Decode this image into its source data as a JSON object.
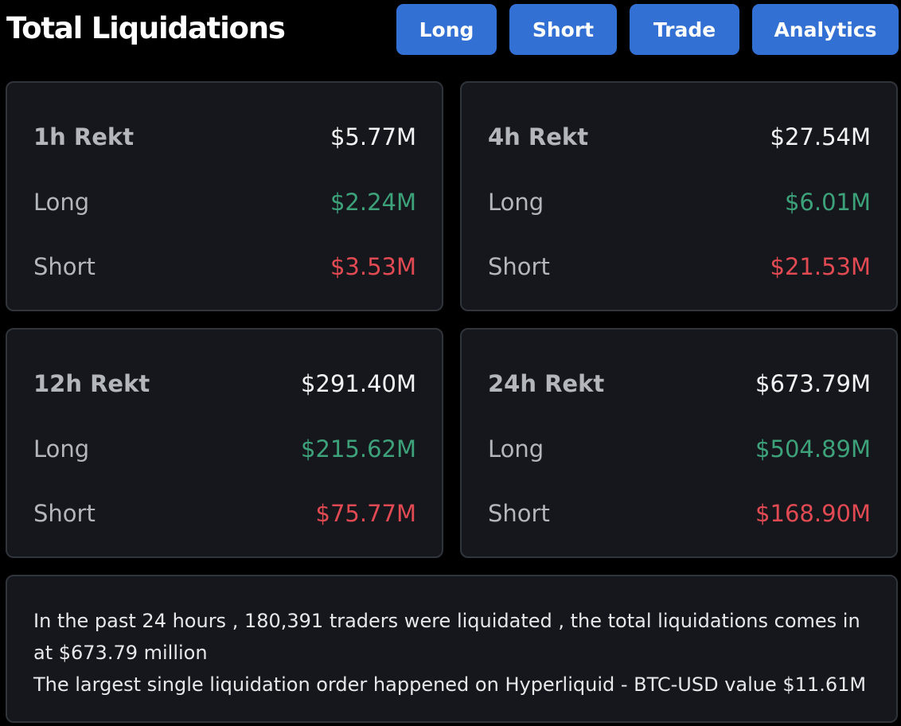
{
  "header": {
    "title": "Total Liquidations",
    "buttons": {
      "long": "Long",
      "short": "Short",
      "trade": "Trade",
      "analytics": "Analytics"
    }
  },
  "cards": [
    {
      "label": "1h Rekt",
      "total": "$5.77M",
      "long_label": "Long",
      "long": "$2.24M",
      "short_label": "Short",
      "short": "$3.53M"
    },
    {
      "label": "4h Rekt",
      "total": "$27.54M",
      "long_label": "Long",
      "long": "$6.01M",
      "short_label": "Short",
      "short": "$21.53M"
    },
    {
      "label": "12h Rekt",
      "total": "$291.40M",
      "long_label": "Long",
      "long": "$215.62M",
      "short_label": "Short",
      "short": "$75.77M"
    },
    {
      "label": "24h Rekt",
      "total": "$673.79M",
      "long_label": "Long",
      "long": "$504.89M",
      "short_label": "Short",
      "short": "$168.90M"
    }
  ],
  "summary": {
    "line1": "In the past 24 hours , 180,391 traders were liquidated , the total liquidations comes in at $673.79 million",
    "line2": "The largest single liquidation order happened on Hyperliquid - BTC-USD value $11.61M"
  },
  "colors": {
    "background": "#000000",
    "card": "#15171c",
    "button": "#3370d4",
    "long": "#3da17a",
    "short": "#e14a52"
  }
}
